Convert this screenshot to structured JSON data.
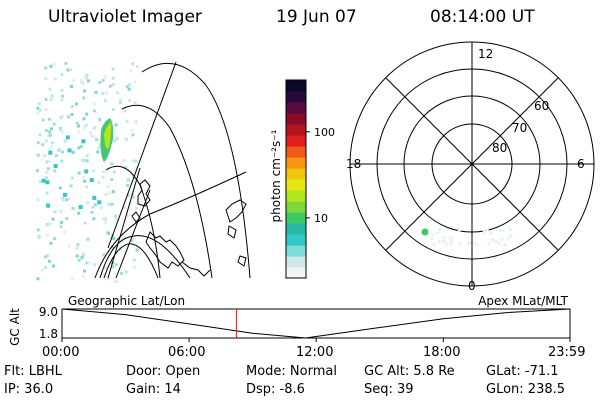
{
  "header": {
    "instrument": "Ultraviolet Imager",
    "date": "19 Jun 07",
    "time": "08:14:00 UT"
  },
  "colorbar": {
    "label": "photon cm⁻²s⁻¹",
    "ticks": [
      {
        "value": 10,
        "label": "10"
      },
      {
        "value": 100,
        "label": "100"
      }
    ],
    "range": [
      2,
      400
    ],
    "scale": "log",
    "colors": [
      "#f4f4f4",
      "#cfe8ec",
      "#7fdcdc",
      "#33c8c8",
      "#2ab8a8",
      "#3cc864",
      "#7ed83c",
      "#b4e61e",
      "#e6e614",
      "#f0c80a",
      "#f59614",
      "#f05a14",
      "#e01e1e",
      "#b4141e",
      "#8c0a2a",
      "#5a0a3c",
      "#2a0a3c",
      "#0a0a28"
    ]
  },
  "polar_plot": {
    "mlt_labels": [
      "12",
      "18",
      "6",
      "0"
    ],
    "lat_labels": [
      "60",
      "70",
      "80"
    ]
  },
  "timeline": {
    "left_label": "Geographic Lat/Lon",
    "right_label": "Apex MLat/MLT",
    "axis_label": "GC Alt",
    "y_ticks": [
      "9.0",
      "1.8"
    ],
    "x_ticks": [
      "00:00",
      "06:00",
      "12:00",
      "18:00",
      "23:59"
    ]
  },
  "chart_data": {
    "type": "line",
    "title": "",
    "xlabel": "",
    "ylabel": "GC Alt",
    "x": [
      "00:00",
      "03:00",
      "06:00",
      "09:00",
      "11:30",
      "15:00",
      "18:00",
      "21:00",
      "23:59"
    ],
    "values": [
      9.0,
      7.6,
      5.3,
      3.0,
      1.8,
      4.4,
      6.6,
      8.1,
      9.0
    ],
    "ylim": [
      1.8,
      9.0
    ],
    "xlim": [
      "00:00",
      "23:59"
    ],
    "marker_time": "08:14",
    "marker_color": "#cc2222"
  },
  "info": {
    "flt": "Flt: LBHL",
    "ip": "IP: 36.0",
    "door": "Door: Open",
    "gain": "Gain: 14",
    "mode": "Mode: Normal",
    "dsp": "Dsp:   -8.6",
    "gc_alt": "GC Alt: 5.8 Re",
    "seq": "Seq: 39",
    "glat": "GLat: -71.1",
    "glon": "GLon: 238.5"
  }
}
